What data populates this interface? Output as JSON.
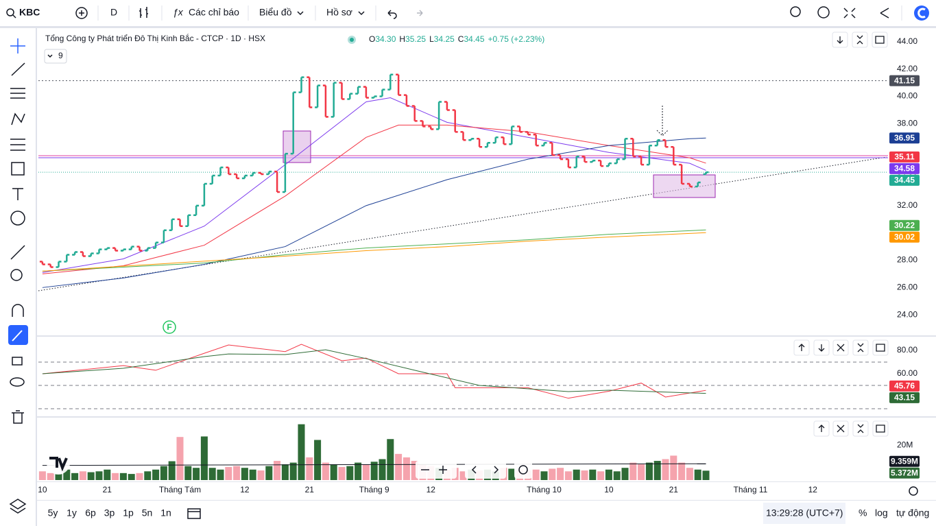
{
  "toolbar": {
    "symbol": "KBC",
    "interval": "D",
    "indicators": "Các chỉ báo",
    "chart_menu": "Biểu đồ",
    "profile": "Hồ sơ"
  },
  "legend": {
    "title": "Tổng Công ty Phát triển Đô Thị Kinh Bắc - CTCP · 1D · HSX",
    "ohlc": [
      "O",
      "34.30",
      "H",
      "35.25",
      "L",
      "34.25",
      "C",
      "34.45"
    ],
    "change": "+0.75 (+2.23%)",
    "indicator_count": "9"
  },
  "marker": "F",
  "footer": {
    "ranges": [
      "5y",
      "1y",
      "6p",
      "3p",
      "1p",
      "5n",
      "1n"
    ],
    "clock": "13:29:28 (UTC+7)",
    "percent": "%",
    "log": "log",
    "auto": "tự động"
  },
  "chart_data": [
    {
      "type": "ohlc",
      "up_color": "#22ab94",
      "down_color": "#f23645",
      "xlim": [
        -0.5,
        104.5
      ],
      "ylim": [
        22.45,
        44.95
      ],
      "xticks": [
        {
          "value": 0,
          "label": "10"
        },
        {
          "value": 8,
          "label": "21"
        },
        {
          "value": 17,
          "label": "Tháng Tám"
        },
        {
          "value": 25,
          "label": "12"
        },
        {
          "value": 33,
          "label": "21"
        },
        {
          "value": 41,
          "label": "Tháng 9"
        },
        {
          "value": 48,
          "label": "12"
        },
        {
          "value": 62,
          "label": "Tháng 10"
        },
        {
          "value": 70,
          "label": "10"
        },
        {
          "value": 78,
          "label": "21"
        },
        {
          "value": 87.5,
          "label": "Tháng 11"
        },
        {
          "value": 95.2,
          "label": "12"
        }
      ],
      "yticks": [
        {
          "value": 44,
          "label": "44.00"
        },
        {
          "value": 42,
          "label": "42.00"
        },
        {
          "value": 40,
          "label": "40.00"
        },
        {
          "value": 38,
          "label": "38.00"
        },
        {
          "value": 34,
          "label": "34.00"
        },
        {
          "value": 32,
          "label": "32.00"
        },
        {
          "value": 28,
          "label": "28.00"
        },
        {
          "value": 26,
          "label": "26.00"
        },
        {
          "value": 24,
          "label": "24.00"
        }
      ],
      "open": [
        27.9,
        27.7,
        27.5,
        27.9,
        28.4,
        28.6,
        28.3,
        28.5,
        28.8,
        28.9,
        28.7,
        28.8,
        29.0,
        28.7,
        28.9,
        29.3,
        30.2,
        31.0,
        30.5,
        31.3,
        32.0,
        33.6,
        34.2,
        34.8,
        34.3,
        34.0,
        34.2,
        34.4,
        34.3,
        34.5,
        33.0,
        35.8,
        40.3,
        41.4,
        39.2,
        40.8,
        38.5,
        41.0,
        39.8,
        40.2,
        40.7,
        39.9,
        40.0,
        40.5,
        41.6,
        40.1,
        39.3,
        38.2,
        37.8,
        37.6,
        39.6,
        39.0,
        37.4,
        36.8,
        36.9,
        36.3,
        36.6,
        37.0,
        36.5,
        37.8,
        37.4,
        37.2,
        36.4,
        36.6,
        35.7,
        35.4,
        34.8,
        35.6,
        35.2,
        35.3,
        34.9,
        35.1,
        35.4,
        36.9,
        35.6,
        35.0,
        36.4,
        36.8,
        36.3,
        35.0,
        33.6,
        33.4,
        34.3
      ],
      "close": [
        27.7,
        27.5,
        27.9,
        28.4,
        28.6,
        28.3,
        28.5,
        28.8,
        28.9,
        28.7,
        28.8,
        29.0,
        28.7,
        28.9,
        29.3,
        30.2,
        31.0,
        30.5,
        31.3,
        32.0,
        33.6,
        34.2,
        34.8,
        34.3,
        34.0,
        34.2,
        34.4,
        34.3,
        34.5,
        33.0,
        35.8,
        40.3,
        41.4,
        39.2,
        40.8,
        38.5,
        41.0,
        39.8,
        40.2,
        40.7,
        39.9,
        40.0,
        40.5,
        41.6,
        40.1,
        39.3,
        38.2,
        37.8,
        37.6,
        39.6,
        39.0,
        37.4,
        36.8,
        36.9,
        36.3,
        36.6,
        37.0,
        36.5,
        37.8,
        37.4,
        37.2,
        36.4,
        36.6,
        35.7,
        35.4,
        34.8,
        35.6,
        35.2,
        35.3,
        34.9,
        35.1,
        35.4,
        36.9,
        35.6,
        35.0,
        36.4,
        36.8,
        36.3,
        35.0,
        33.6,
        33.4,
        33.7,
        34.45
      ],
      "moving_averages": [
        {
          "color": "#7c3aed",
          "x": [
            0,
            10,
            20,
            30,
            40,
            43,
            50,
            60,
            70,
            80,
            82
          ],
          "values": [
            27.1,
            28.1,
            30.5,
            35.0,
            39.6,
            39.9,
            38.1,
            37.0,
            35.9,
            35.1,
            34.58
          ],
          "label": "34.58"
        },
        {
          "color": "#f23645",
          "x": [
            0,
            10,
            20,
            30,
            40,
            44,
            50,
            60,
            70,
            80,
            82
          ],
          "values": [
            27.0,
            27.6,
            29.1,
            32.7,
            37.0,
            37.9,
            37.9,
            37.4,
            36.4,
            35.5,
            35.11
          ],
          "label": "35.11"
        },
        {
          "color": "#1c3f94",
          "x": [
            0,
            10,
            20,
            30,
            40,
            50,
            60,
            70,
            80,
            82
          ],
          "values": [
            26.0,
            26.7,
            27.7,
            29.0,
            32.0,
            33.9,
            35.4,
            36.4,
            36.9,
            36.95
          ],
          "label": "36.95"
        },
        {
          "color": "#4caf50",
          "x": [
            0,
            10,
            20,
            30,
            40,
            50,
            60,
            70,
            82
          ],
          "values": [
            27.2,
            27.5,
            27.8,
            28.4,
            28.9,
            29.2,
            29.5,
            29.9,
            30.22
          ],
          "label": "30.22"
        },
        {
          "color": "#ff9800",
          "x": [
            0,
            30,
            40,
            50,
            60,
            70,
            82
          ],
          "values": [
            27.2,
            28.3,
            28.7,
            29.0,
            29.4,
            29.7,
            30.02
          ],
          "label": "30.02"
        }
      ],
      "alert_level": {
        "value": 41.15,
        "label": "41.15",
        "color": "#4a4e59"
      },
      "last_price": {
        "value": 34.45,
        "label": "34.45",
        "color": "#22ab94"
      }
    },
    {
      "type": "line",
      "ylim": [
        23.5,
        91.8
      ],
      "yticks": [
        {
          "value": 80,
          "label": "80.00"
        },
        {
          "value": 60,
          "label": "60.00"
        }
      ],
      "levels": [
        70,
        50,
        30
      ],
      "series": [
        {
          "color": "#f23645",
          "x": [
            0,
            10,
            14,
            20,
            23,
            30,
            32,
            37,
            40,
            44,
            50,
            51,
            60,
            65,
            70,
            74,
            77,
            82
          ],
          "values": [
            60,
            67,
            63,
            77.6,
            84.7,
            79,
            85.3,
            71.2,
            73.5,
            60,
            60,
            48,
            48,
            39,
            45,
            52,
            40,
            45.76
          ],
          "label": "45.76"
        },
        {
          "color": "#2e6b36",
          "x": [
            0,
            10,
            20,
            23,
            30,
            35,
            40,
            46,
            54,
            65,
            70,
            82
          ],
          "values": [
            60,
            64.7,
            74.7,
            77,
            76.5,
            80.6,
            73,
            63,
            50,
            44.7,
            45.9,
            43.15
          ],
          "label": "43.15"
        }
      ]
    },
    {
      "type": "bar",
      "up_color": "#2e6b36",
      "down_color": "#f5a3ad",
      "ylim": [
        0,
        35
      ],
      "yticks": [
        {
          "value": 20,
          "label": "20M"
        }
      ],
      "values": [
        5,
        4,
        3.5,
        6,
        4,
        5,
        4.5,
        5,
        6,
        4,
        4,
        3.5,
        4,
        5,
        6,
        8,
        10.8,
        24.7,
        8,
        7,
        25,
        7,
        6,
        7.5,
        8,
        7,
        6,
        5.5,
        8,
        11,
        9,
        10,
        32,
        13,
        23,
        10,
        9,
        7.5,
        8,
        10,
        9,
        10.5,
        12,
        23.5,
        15,
        13,
        11,
        9,
        8,
        7,
        6,
        7,
        5,
        6,
        5.5,
        6,
        5,
        7,
        6.5,
        6,
        5.5,
        6,
        5,
        6.5,
        7,
        5,
        6,
        5.5,
        6,
        5,
        6,
        5,
        7,
        10,
        9,
        10,
        11,
        12,
        14,
        10,
        7,
        6,
        5.372
      ],
      "last_value_label": "5.372M",
      "average": {
        "color": "#131722",
        "x": [
          0,
          82
        ],
        "values": [
          8.4,
          9.359
        ],
        "label": "9.359M"
      }
    }
  ]
}
